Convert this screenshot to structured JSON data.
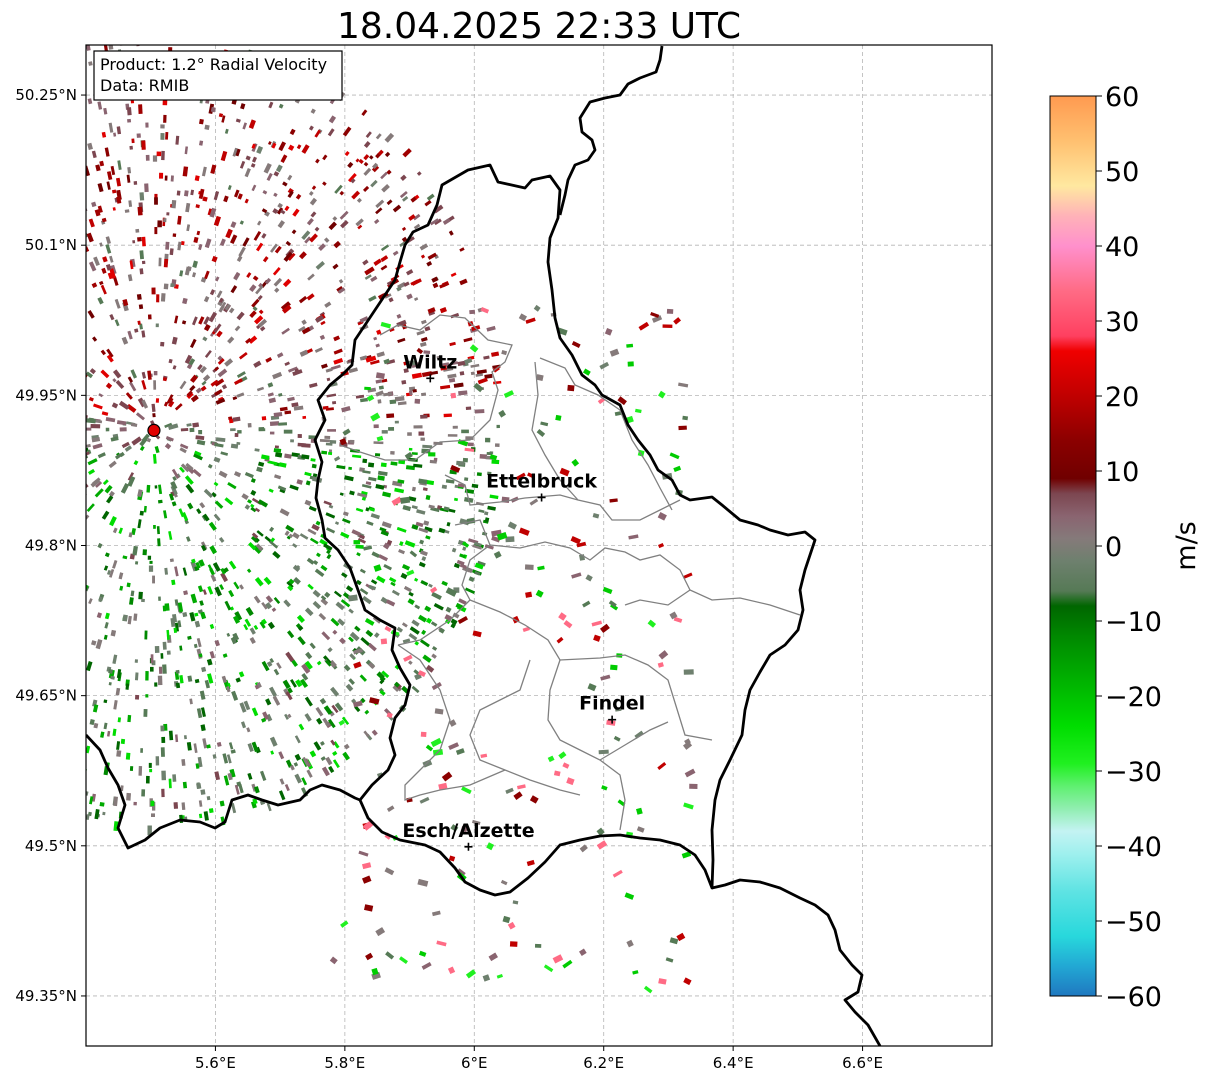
{
  "title": "18.04.2025 22:33 UTC",
  "info_box": {
    "product": "Product: 1.2° Radial Velocity",
    "source": "Data: RMIB"
  },
  "map": {
    "lon_range": [
      5.4,
      6.8
    ],
    "lat_range": [
      49.3,
      50.3
    ],
    "lon_ticks": [
      {
        "value": 5.6,
        "label": "5.6°E"
      },
      {
        "value": 5.8,
        "label": "5.8°E"
      },
      {
        "value": 6.0,
        "label": "6°E"
      },
      {
        "value": 6.2,
        "label": "6.2°E"
      },
      {
        "value": 6.4,
        "label": "6.4°E"
      },
      {
        "value": 6.6,
        "label": "6.6°E"
      }
    ],
    "lat_ticks": [
      {
        "value": 50.25,
        "label": "50.25°N"
      },
      {
        "value": 50.1,
        "label": "50.1°N"
      },
      {
        "value": 49.95,
        "label": "49.95°N"
      },
      {
        "value": 49.8,
        "label": "49.8°N"
      },
      {
        "value": 49.65,
        "label": "49.65°N"
      },
      {
        "value": 49.5,
        "label": "49.5°N"
      },
      {
        "value": 49.35,
        "label": "49.35°N"
      }
    ],
    "grid": true,
    "radar_site": {
      "lon": 5.505,
      "lat": 49.915,
      "color": "#e00000"
    },
    "cities": [
      {
        "name": "Wiltz",
        "lon": 5.932,
        "lat": 49.967
      },
      {
        "name": "Ettelbruck",
        "lon": 6.104,
        "lat": 49.848
      },
      {
        "name": "Findel",
        "lon": 6.213,
        "lat": 49.626
      },
      {
        "name": "Esch/Alzette",
        "lon": 5.991,
        "lat": 49.499
      }
    ]
  },
  "colorbar": {
    "label": "m/s",
    "min": -60,
    "max": 60,
    "ticks": [
      {
        "value": 60,
        "label": "60"
      },
      {
        "value": 50,
        "label": "50"
      },
      {
        "value": 40,
        "label": "40"
      },
      {
        "value": 30,
        "label": "30"
      },
      {
        "value": 20,
        "label": "20"
      },
      {
        "value": 10,
        "label": "10"
      },
      {
        "value": 0,
        "label": "0"
      },
      {
        "value": -10,
        "label": "−10"
      },
      {
        "value": -20,
        "label": "−20"
      },
      {
        "value": -30,
        "label": "−30"
      },
      {
        "value": -40,
        "label": "−40"
      },
      {
        "value": -50,
        "label": "−50"
      },
      {
        "value": -60,
        "label": "−60"
      }
    ],
    "color_stops": [
      {
        "value": -60,
        "color": "#1f78c0"
      },
      {
        "value": -56,
        "color": "#22a8d4"
      },
      {
        "value": -52,
        "color": "#28d8dc"
      },
      {
        "value": -46,
        "color": "#5fe3e3"
      },
      {
        "value": -41,
        "color": "#9ff0ee"
      },
      {
        "value": -38,
        "color": "#c4f3f3"
      },
      {
        "value": -35,
        "color": "#90eeb0"
      },
      {
        "value": -32,
        "color": "#5ff070"
      },
      {
        "value": -29,
        "color": "#20f020"
      },
      {
        "value": -24,
        "color": "#00dd00"
      },
      {
        "value": -18,
        "color": "#00b200"
      },
      {
        "value": -12,
        "color": "#008800"
      },
      {
        "value": -8,
        "color": "#006600"
      },
      {
        "value": -6,
        "color": "#567a56"
      },
      {
        "value": -2,
        "color": "#6e806e"
      },
      {
        "value": 1,
        "color": "#857a7a"
      },
      {
        "value": 4,
        "color": "#8a6470"
      },
      {
        "value": 7,
        "color": "#7c4650"
      },
      {
        "value": 9,
        "color": "#700000"
      },
      {
        "value": 14,
        "color": "#8b0000"
      },
      {
        "value": 20,
        "color": "#c00000"
      },
      {
        "value": 26,
        "color": "#f00000"
      },
      {
        "value": 28,
        "color": "#ff4060"
      },
      {
        "value": 34,
        "color": "#ff6b85"
      },
      {
        "value": 40,
        "color": "#ff90cc"
      },
      {
        "value": 44,
        "color": "#ffb2b8"
      },
      {
        "value": 48,
        "color": "#ffe8a0"
      },
      {
        "value": 54,
        "color": "#ffc070"
      },
      {
        "value": 60,
        "color": "#ff9a50"
      }
    ]
  }
}
